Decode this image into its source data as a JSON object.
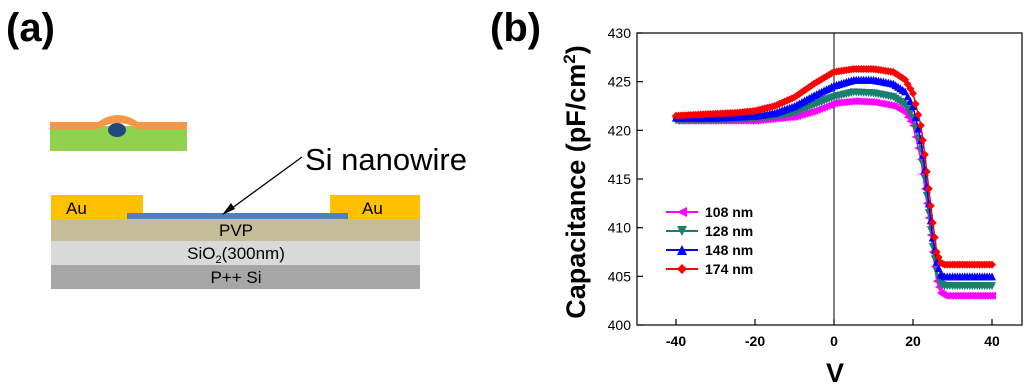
{
  "panel_a": {
    "label": "(a)",
    "pointer_label": "Si nanowire",
    "electrode_left": "Au",
    "electrode_right": "Au",
    "dielectric": "PVP",
    "oxide_prefix": "SiO",
    "oxide_subscript": "2",
    "oxide_suffix": "(300nm)",
    "substrate": "P++ Si",
    "colors": {
      "gold": "#ffc000",
      "pvp": "#c4bd97",
      "oxide": "#d9d9d9",
      "substrate": "#a6a6a6",
      "nanowire": "#4f81bd",
      "green_layer": "#92d050",
      "orange_layer": "#f79646",
      "cross_section": "#1f497d"
    }
  },
  "panel_b": {
    "label": "(b)"
  },
  "chart_data": {
    "type": "line",
    "title": "",
    "xlabel": "V",
    "ylabel_main": "Capacitance (pF/cm",
    "ylabel_sup": "2",
    "ylabel_close": ")",
    "xlim": [
      -40,
      40
    ],
    "ylim": [
      400,
      430
    ],
    "x_ticks": [
      -40,
      -20,
      0,
      20,
      40
    ],
    "x_tick_labels": [
      "-40",
      "-20",
      "0",
      "20",
      "40"
    ],
    "y_ticks": [
      400,
      405,
      410,
      415,
      420,
      425,
      430
    ],
    "y_tick_labels": [
      "400",
      "405",
      "410",
      "415",
      "420",
      "425",
      "430"
    ],
    "vertical_reference_line_x": 0,
    "legend_position": "left",
    "x": [
      -40,
      -35,
      -30,
      -25,
      -20,
      -15,
      -10,
      -5,
      0,
      5,
      10,
      15,
      18,
      20,
      22,
      23,
      24,
      25,
      26,
      27,
      28,
      30,
      35,
      40
    ],
    "series": [
      {
        "name": "108 nm",
        "color": "#ff00ff",
        "marker": "triangle-left",
        "values": [
          421,
          421,
          421,
          421,
          421,
          421.2,
          421.4,
          422,
          422.8,
          423,
          422.9,
          422.5,
          421.8,
          420.5,
          417,
          414,
          411,
          407.5,
          404.5,
          403.3,
          403,
          403,
          403,
          403
        ]
      },
      {
        "name": "128 nm",
        "color": "#1a7f6e",
        "marker": "triangle-down",
        "values": [
          421,
          421,
          421,
          421.1,
          421.2,
          421.4,
          421.8,
          422.6,
          423.4,
          423.9,
          423.8,
          423.4,
          422.6,
          421.3,
          418,
          415,
          411.5,
          408,
          405.5,
          404.2,
          404,
          404,
          404,
          404
        ]
      },
      {
        "name": "148 nm",
        "color": "#0000ff",
        "marker": "triangle-up",
        "values": [
          421.3,
          421.3,
          421.3,
          421.4,
          421.5,
          421.8,
          422.5,
          423.6,
          424.6,
          425.2,
          425.2,
          424.8,
          424,
          422.5,
          419,
          416,
          412.5,
          409,
          406.5,
          405.2,
          405,
          405,
          405,
          405
        ]
      },
      {
        "name": "174 nm",
        "color": "#ff0000",
        "marker": "diamond",
        "values": [
          421.5,
          421.6,
          421.7,
          421.8,
          422,
          422.5,
          423.4,
          424.8,
          426,
          426.3,
          426.3,
          426,
          425.2,
          423.8,
          420.5,
          417.5,
          414,
          410.5,
          407.5,
          406.4,
          406.2,
          406.2,
          406.2,
          406.2
        ]
      }
    ]
  }
}
